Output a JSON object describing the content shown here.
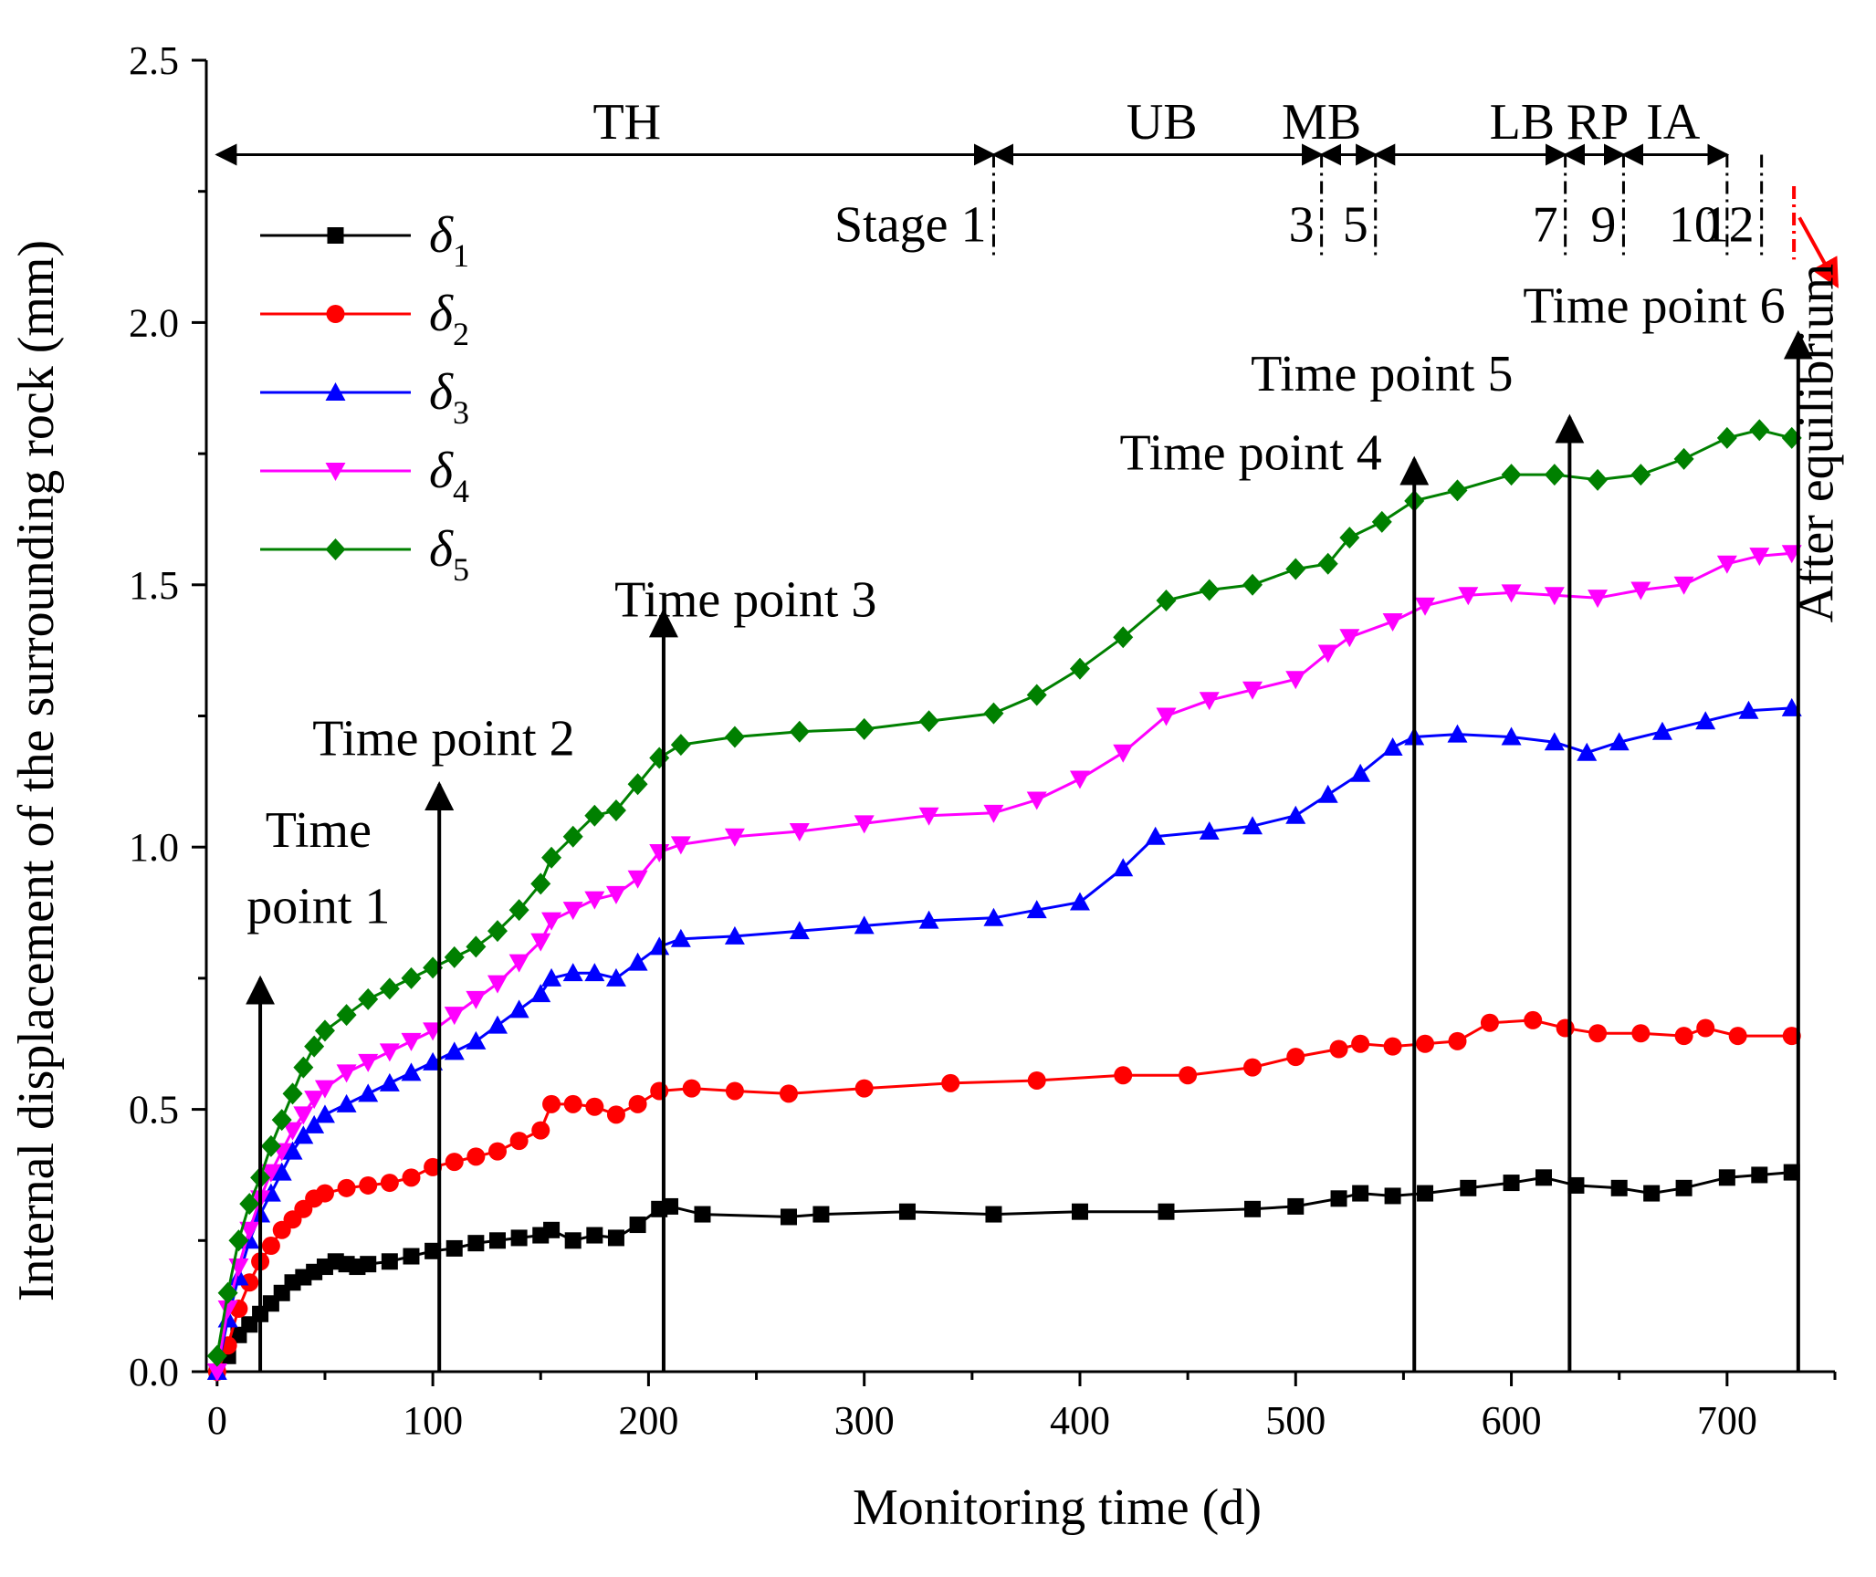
{
  "chart_data": {
    "type": "line",
    "xlabel": "Monitoring time (d)",
    "ylabel": "Internal displacement of the surrounding rock (mm)",
    "xlim": [
      -5,
      750
    ],
    "ylim": [
      0,
      2.5
    ],
    "xticks": [
      0,
      100,
      200,
      300,
      400,
      500,
      600,
      700
    ],
    "xtick_labels": [
      "0",
      "100",
      "200",
      "300",
      "400",
      "500",
      "600",
      "700"
    ],
    "yticks": [
      0,
      0.5,
      1.0,
      1.5,
      2.0,
      2.5
    ],
    "ytick_labels": [
      "0.0",
      "0.5",
      "1.0",
      "1.5",
      "2.0",
      "2.5"
    ],
    "legend_position": "upper-left",
    "series": [
      {
        "name": "δ1",
        "sub": "1",
        "color": "#000000",
        "marker": "square",
        "points": [
          [
            0,
            0
          ],
          [
            5,
            0.03
          ],
          [
            10,
            0.07
          ],
          [
            15,
            0.09
          ],
          [
            20,
            0.11
          ],
          [
            25,
            0.13
          ],
          [
            30,
            0.15
          ],
          [
            35,
            0.17
          ],
          [
            40,
            0.18
          ],
          [
            45,
            0.19
          ],
          [
            50,
            0.2
          ],
          [
            55,
            0.21
          ],
          [
            60,
            0.205
          ],
          [
            65,
            0.2
          ],
          [
            70,
            0.205
          ],
          [
            80,
            0.21
          ],
          [
            90,
            0.22
          ],
          [
            100,
            0.23
          ],
          [
            110,
            0.235
          ],
          [
            120,
            0.245
          ],
          [
            130,
            0.25
          ],
          [
            140,
            0.255
          ],
          [
            150,
            0.26
          ],
          [
            155,
            0.27
          ],
          [
            165,
            0.25
          ],
          [
            175,
            0.26
          ],
          [
            185,
            0.255
          ],
          [
            195,
            0.28
          ],
          [
            205,
            0.31
          ],
          [
            210,
            0.315
          ],
          [
            225,
            0.3
          ],
          [
            265,
            0.295
          ],
          [
            280,
            0.3
          ],
          [
            320,
            0.305
          ],
          [
            360,
            0.3
          ],
          [
            400,
            0.305
          ],
          [
            440,
            0.305
          ],
          [
            480,
            0.31
          ],
          [
            500,
            0.315
          ],
          [
            520,
            0.33
          ],
          [
            530,
            0.34
          ],
          [
            545,
            0.335
          ],
          [
            560,
            0.34
          ],
          [
            580,
            0.35
          ],
          [
            600,
            0.36
          ],
          [
            615,
            0.37
          ],
          [
            630,
            0.355
          ],
          [
            650,
            0.35
          ],
          [
            665,
            0.34
          ],
          [
            680,
            0.35
          ],
          [
            700,
            0.37
          ],
          [
            715,
            0.375
          ],
          [
            730,
            0.38
          ]
        ]
      },
      {
        "name": "δ2",
        "sub": "2",
        "color": "#ff0000",
        "marker": "circle",
        "points": [
          [
            0,
            0
          ],
          [
            5,
            0.05
          ],
          [
            10,
            0.12
          ],
          [
            15,
            0.17
          ],
          [
            20,
            0.21
          ],
          [
            25,
            0.24
          ],
          [
            30,
            0.27
          ],
          [
            35,
            0.29
          ],
          [
            40,
            0.31
          ],
          [
            45,
            0.33
          ],
          [
            50,
            0.34
          ],
          [
            60,
            0.35
          ],
          [
            70,
            0.355
          ],
          [
            80,
            0.36
          ],
          [
            90,
            0.37
          ],
          [
            100,
            0.39
          ],
          [
            110,
            0.4
          ],
          [
            120,
            0.41
          ],
          [
            130,
            0.42
          ],
          [
            140,
            0.44
          ],
          [
            150,
            0.46
          ],
          [
            155,
            0.51
          ],
          [
            165,
            0.51
          ],
          [
            175,
            0.505
          ],
          [
            185,
            0.49
          ],
          [
            195,
            0.51
          ],
          [
            205,
            0.535
          ],
          [
            220,
            0.54
          ],
          [
            240,
            0.535
          ],
          [
            265,
            0.53
          ],
          [
            300,
            0.54
          ],
          [
            340,
            0.55
          ],
          [
            380,
            0.555
          ],
          [
            420,
            0.565
          ],
          [
            450,
            0.565
          ],
          [
            480,
            0.58
          ],
          [
            500,
            0.6
          ],
          [
            520,
            0.615
          ],
          [
            530,
            0.625
          ],
          [
            545,
            0.62
          ],
          [
            560,
            0.625
          ],
          [
            575,
            0.63
          ],
          [
            590,
            0.665
          ],
          [
            610,
            0.67
          ],
          [
            625,
            0.655
          ],
          [
            640,
            0.645
          ],
          [
            660,
            0.645
          ],
          [
            680,
            0.64
          ],
          [
            690,
            0.655
          ],
          [
            705,
            0.64
          ],
          [
            730,
            0.64
          ]
        ]
      },
      {
        "name": "δ3",
        "sub": "3",
        "color": "#0000ff",
        "marker": "triangle-up",
        "points": [
          [
            0,
            0
          ],
          [
            5,
            0.1
          ],
          [
            10,
            0.18
          ],
          [
            15,
            0.25
          ],
          [
            20,
            0.3
          ],
          [
            25,
            0.34
          ],
          [
            30,
            0.38
          ],
          [
            35,
            0.42
          ],
          [
            40,
            0.45
          ],
          [
            45,
            0.47
          ],
          [
            50,
            0.49
          ],
          [
            60,
            0.51
          ],
          [
            70,
            0.53
          ],
          [
            80,
            0.55
          ],
          [
            90,
            0.57
          ],
          [
            100,
            0.59
          ],
          [
            110,
            0.61
          ],
          [
            120,
            0.63
          ],
          [
            130,
            0.66
          ],
          [
            140,
            0.69
          ],
          [
            150,
            0.72
          ],
          [
            155,
            0.75
          ],
          [
            165,
            0.76
          ],
          [
            175,
            0.76
          ],
          [
            185,
            0.75
          ],
          [
            195,
            0.78
          ],
          [
            205,
            0.81
          ],
          [
            215,
            0.825
          ],
          [
            240,
            0.83
          ],
          [
            270,
            0.84
          ],
          [
            300,
            0.85
          ],
          [
            330,
            0.86
          ],
          [
            360,
            0.865
          ],
          [
            380,
            0.88
          ],
          [
            400,
            0.895
          ],
          [
            420,
            0.96
          ],
          [
            435,
            1.02
          ],
          [
            460,
            1.03
          ],
          [
            480,
            1.04
          ],
          [
            500,
            1.06
          ],
          [
            515,
            1.1
          ],
          [
            530,
            1.14
          ],
          [
            545,
            1.19
          ],
          [
            555,
            1.21
          ],
          [
            575,
            1.215
          ],
          [
            600,
            1.21
          ],
          [
            620,
            1.2
          ],
          [
            635,
            1.18
          ],
          [
            650,
            1.2
          ],
          [
            670,
            1.22
          ],
          [
            690,
            1.24
          ],
          [
            710,
            1.26
          ],
          [
            730,
            1.265
          ]
        ]
      },
      {
        "name": "δ4",
        "sub": "4",
        "color": "#ff00ff",
        "marker": "triangle-down",
        "points": [
          [
            0,
            0
          ],
          [
            5,
            0.12
          ],
          [
            10,
            0.2
          ],
          [
            15,
            0.27
          ],
          [
            20,
            0.33
          ],
          [
            25,
            0.38
          ],
          [
            30,
            0.42
          ],
          [
            35,
            0.46
          ],
          [
            40,
            0.49
          ],
          [
            45,
            0.52
          ],
          [
            50,
            0.54
          ],
          [
            60,
            0.57
          ],
          [
            70,
            0.59
          ],
          [
            80,
            0.61
          ],
          [
            90,
            0.63
          ],
          [
            100,
            0.65
          ],
          [
            110,
            0.68
          ],
          [
            120,
            0.71
          ],
          [
            130,
            0.74
          ],
          [
            140,
            0.78
          ],
          [
            150,
            0.82
          ],
          [
            155,
            0.86
          ],
          [
            165,
            0.88
          ],
          [
            175,
            0.9
          ],
          [
            185,
            0.91
          ],
          [
            195,
            0.94
          ],
          [
            205,
            0.99
          ],
          [
            215,
            1.005
          ],
          [
            240,
            1.02
          ],
          [
            270,
            1.03
          ],
          [
            300,
            1.045
          ],
          [
            330,
            1.06
          ],
          [
            360,
            1.065
          ],
          [
            380,
            1.09
          ],
          [
            400,
            1.13
          ],
          [
            420,
            1.18
          ],
          [
            440,
            1.25
          ],
          [
            460,
            1.28
          ],
          [
            480,
            1.3
          ],
          [
            500,
            1.32
          ],
          [
            515,
            1.37
          ],
          [
            525,
            1.4
          ],
          [
            545,
            1.43
          ],
          [
            560,
            1.46
          ],
          [
            580,
            1.48
          ],
          [
            600,
            1.485
          ],
          [
            620,
            1.48
          ],
          [
            640,
            1.475
          ],
          [
            660,
            1.49
          ],
          [
            680,
            1.5
          ],
          [
            700,
            1.54
          ],
          [
            715,
            1.555
          ],
          [
            730,
            1.56
          ]
        ]
      },
      {
        "name": "δ5",
        "sub": "5",
        "color": "#008000",
        "marker": "diamond",
        "points": [
          [
            0,
            0.03
          ],
          [
            5,
            0.15
          ],
          [
            10,
            0.25
          ],
          [
            15,
            0.32
          ],
          [
            20,
            0.37
          ],
          [
            25,
            0.43
          ],
          [
            30,
            0.48
          ],
          [
            35,
            0.53
          ],
          [
            40,
            0.58
          ],
          [
            45,
            0.62
          ],
          [
            50,
            0.65
          ],
          [
            60,
            0.68
          ],
          [
            70,
            0.71
          ],
          [
            80,
            0.73
          ],
          [
            90,
            0.75
          ],
          [
            100,
            0.77
          ],
          [
            110,
            0.79
          ],
          [
            120,
            0.81
          ],
          [
            130,
            0.84
          ],
          [
            140,
            0.88
          ],
          [
            150,
            0.93
          ],
          [
            155,
            0.98
          ],
          [
            165,
            1.02
          ],
          [
            175,
            1.06
          ],
          [
            185,
            1.07
          ],
          [
            195,
            1.12
          ],
          [
            205,
            1.17
          ],
          [
            215,
            1.195
          ],
          [
            240,
            1.21
          ],
          [
            270,
            1.22
          ],
          [
            300,
            1.225
          ],
          [
            330,
            1.24
          ],
          [
            360,
            1.255
          ],
          [
            380,
            1.29
          ],
          [
            400,
            1.34
          ],
          [
            420,
            1.4
          ],
          [
            440,
            1.47
          ],
          [
            460,
            1.49
          ],
          [
            480,
            1.5
          ],
          [
            500,
            1.53
          ],
          [
            515,
            1.54
          ],
          [
            525,
            1.59
          ],
          [
            540,
            1.62
          ],
          [
            555,
            1.66
          ],
          [
            575,
            1.68
          ],
          [
            600,
            1.71
          ],
          [
            620,
            1.71
          ],
          [
            640,
            1.7
          ],
          [
            660,
            1.71
          ],
          [
            680,
            1.74
          ],
          [
            700,
            1.78
          ],
          [
            715,
            1.795
          ],
          [
            730,
            1.78
          ]
        ]
      }
    ],
    "time_points": [
      {
        "label": "Time",
        "label2": "point 1",
        "x": 20,
        "y_top": 0.75,
        "text_anchor": "middle",
        "text_x": 47,
        "text_y": 1.0,
        "text_y2": 0.855
      },
      {
        "label": "Time point 2",
        "x": 103,
        "y_top": 1.12,
        "text_anchor": "middle",
        "text_x": 105,
        "text_y": 1.175
      },
      {
        "label": "Time point 3",
        "x": 207,
        "y_top": 1.45,
        "text_anchor": "middle",
        "text_x": 245,
        "text_y": 1.44
      },
      {
        "label": "Time point 4",
        "x": 555,
        "y_top": 1.74,
        "text_anchor": "end",
        "text_x": 540,
        "text_y": 1.72
      },
      {
        "label": "Time point 5",
        "x": 627,
        "y_top": 1.82,
        "text_anchor": "middle",
        "text_x": 540,
        "text_y": 1.87
      },
      {
        "label": "Time point 6",
        "x": 733,
        "y_top": 1.98,
        "text_anchor": "end",
        "text_x": 727,
        "text_y": 2.0
      }
    ],
    "excavation_sections": [
      {
        "label": "TH",
        "label_x": 190,
        "x0": 0,
        "x1": 360
      },
      {
        "label": "UB",
        "label_x": 438,
        "x0": 360,
        "x1": 512
      },
      {
        "label": "MB",
        "label_x": 512,
        "x0": 512,
        "x1": 537
      },
      {
        "label": "LB",
        "label_x": 605,
        "x0": 537,
        "x1": 625
      },
      {
        "label": "RP",
        "label_x": 640,
        "x0": 625,
        "x1": 652
      },
      {
        "label": "IA",
        "label_x": 675,
        "x0": 652,
        "x1": 700
      }
    ],
    "stage_markers": [
      {
        "label": "Stage 1",
        "x": 360,
        "text_anchor": "end"
      },
      {
        "label": "3",
        "x": 512,
        "text_anchor": "end"
      },
      {
        "label": "5",
        "x": 537,
        "text_anchor": "end"
      },
      {
        "label": "7",
        "x": 625,
        "text_anchor": "end"
      },
      {
        "label": "9",
        "x": 652,
        "text_anchor": "end"
      },
      {
        "label": "10",
        "x": 700,
        "text_anchor": "end"
      },
      {
        "label": "12",
        "x": 716,
        "text_anchor": "end"
      }
    ],
    "equilibrium": {
      "label": "After equilibrium",
      "x": 731,
      "color": "#ff0000"
    }
  }
}
